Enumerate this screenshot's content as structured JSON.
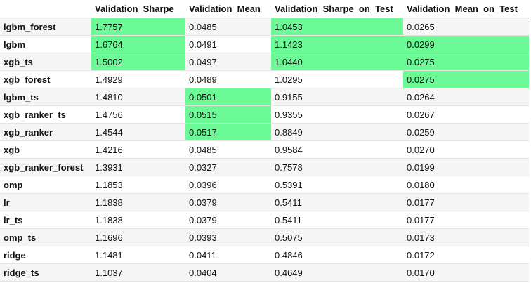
{
  "table": {
    "columns": [
      "",
      "Validation_Sharpe",
      "Validation_Mean",
      "Validation_Sharpe_on_Test",
      "Validation_Mean_on_Test"
    ],
    "highlight_color": "#6cfa96",
    "rows": [
      {
        "name": "lgbm_forest",
        "values": [
          "1.7757",
          "0.0485",
          "1.0453",
          "0.0265"
        ],
        "highlight": [
          true,
          false,
          true,
          false
        ]
      },
      {
        "name": "lgbm",
        "values": [
          "1.6764",
          "0.0491",
          "1.1423",
          "0.0299"
        ],
        "highlight": [
          true,
          false,
          true,
          true
        ]
      },
      {
        "name": "xgb_ts",
        "values": [
          "1.5002",
          "0.0497",
          "1.0440",
          "0.0275"
        ],
        "highlight": [
          true,
          false,
          true,
          true
        ]
      },
      {
        "name": "xgb_forest",
        "values": [
          "1.4929",
          "0.0489",
          "1.0295",
          "0.0275"
        ],
        "highlight": [
          false,
          false,
          false,
          true
        ]
      },
      {
        "name": "lgbm_ts",
        "values": [
          "1.4810",
          "0.0501",
          "0.9155",
          "0.0264"
        ],
        "highlight": [
          false,
          true,
          false,
          false
        ]
      },
      {
        "name": "xgb_ranker_ts",
        "values": [
          "1.4756",
          "0.0515",
          "0.9355",
          "0.0267"
        ],
        "highlight": [
          false,
          true,
          false,
          false
        ]
      },
      {
        "name": "xgb_ranker",
        "values": [
          "1.4544",
          "0.0517",
          "0.8849",
          "0.0259"
        ],
        "highlight": [
          false,
          true,
          false,
          false
        ]
      },
      {
        "name": "xgb",
        "values": [
          "1.4216",
          "0.0485",
          "0.9584",
          "0.0270"
        ],
        "highlight": [
          false,
          false,
          false,
          false
        ]
      },
      {
        "name": "xgb_ranker_forest",
        "values": [
          "1.3931",
          "0.0327",
          "0.7578",
          "0.0199"
        ],
        "highlight": [
          false,
          false,
          false,
          false
        ]
      },
      {
        "name": "omp",
        "values": [
          "1.1853",
          "0.0396",
          "0.5391",
          "0.0180"
        ],
        "highlight": [
          false,
          false,
          false,
          false
        ]
      },
      {
        "name": "lr",
        "values": [
          "1.1838",
          "0.0379",
          "0.5411",
          "0.0177"
        ],
        "highlight": [
          false,
          false,
          false,
          false
        ]
      },
      {
        "name": "lr_ts",
        "values": [
          "1.1838",
          "0.0379",
          "0.5411",
          "0.0177"
        ],
        "highlight": [
          false,
          false,
          false,
          false
        ]
      },
      {
        "name": "omp_ts",
        "values": [
          "1.1696",
          "0.0393",
          "0.5075",
          "0.0173"
        ],
        "highlight": [
          false,
          false,
          false,
          false
        ]
      },
      {
        "name": "ridge",
        "values": [
          "1.1481",
          "0.0411",
          "0.4846",
          "0.0172"
        ],
        "highlight": [
          false,
          false,
          false,
          false
        ]
      },
      {
        "name": "ridge_ts",
        "values": [
          "1.1037",
          "0.0404",
          "0.4649",
          "0.0170"
        ],
        "highlight": [
          false,
          false,
          false,
          false
        ]
      }
    ]
  }
}
